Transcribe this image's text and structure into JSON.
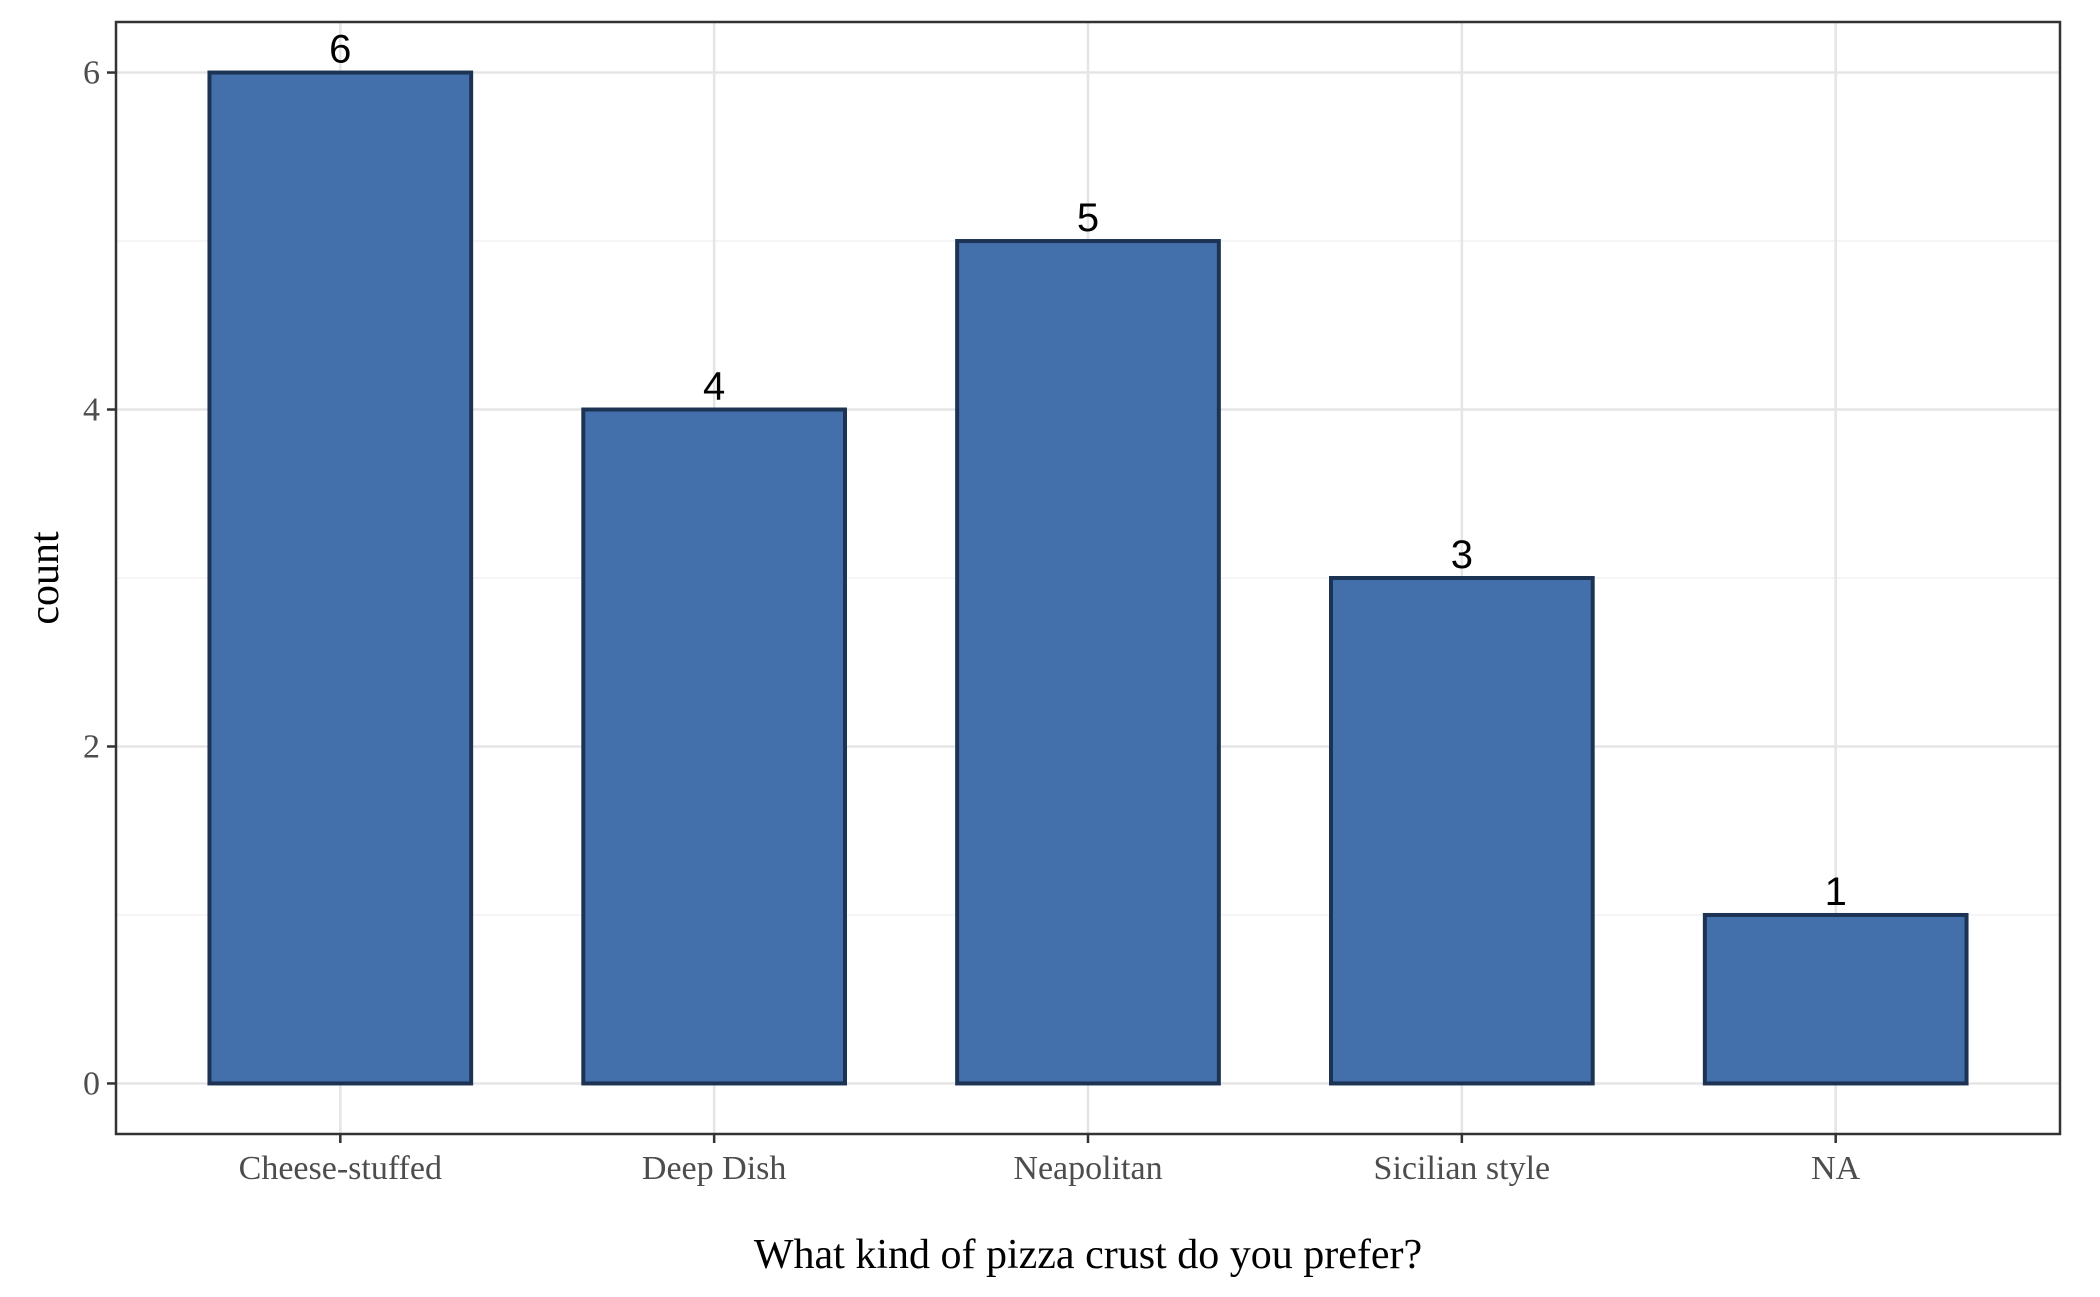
{
  "chart_data": {
    "type": "bar",
    "categories": [
      "Cheese-stuffed",
      "Deep Dish",
      "Neapolitan",
      "Sicilian style",
      "NA"
    ],
    "values": [
      6,
      4,
      5,
      3,
      1
    ],
    "data_labels": [
      "6",
      "4",
      "5",
      "3",
      "1"
    ],
    "title": "",
    "xlabel": "What kind of pizza crust do you prefer?",
    "ylabel": "count",
    "ylim": [
      -0.3,
      6.3
    ],
    "yticks": [
      0,
      2,
      4,
      6
    ],
    "ytick_labels": [
      "0",
      "2",
      "4",
      "6"
    ],
    "grid": true,
    "legend": "none",
    "colors": {
      "bar_fill": "#4370aa",
      "bar_outline": "#1c3354",
      "grid_major": "#e5e5e5",
      "grid_minor": "#f2f2f2",
      "panel_border": "#333333",
      "tick_text": "#4d4d4d"
    }
  }
}
